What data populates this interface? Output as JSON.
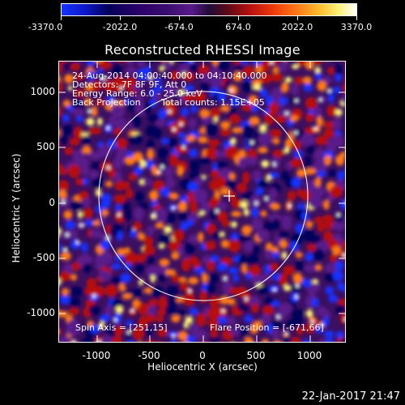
{
  "colorbar": {
    "ticks": [
      "-3370.0",
      "-2022.0",
      "-674.0",
      "674.0",
      "2022.0",
      "3370.0"
    ]
  },
  "title": "Reconstructed RHESSI Image",
  "annotations": {
    "time_range": "24-Aug-2014 04:00:40.000 to 04:10:40.000",
    "detectors": "Detectors: 7F 8F 9F, Att 0",
    "energy_range": "Energy Range: 6.0 - 25.0 keV",
    "method": "Back Projection",
    "total_counts": "Total counts: 1.15E+05",
    "spin_axis": "Spin Axis = [251,15]",
    "flare_position": "Flare Position = [-671,66]"
  },
  "axes": {
    "xlabel": "Heliocentric X (arcsec)",
    "ylabel": "Heliocentric Y (arcsec)",
    "xticks": [
      "-1000",
      "-500",
      "0",
      "500",
      "1000"
    ],
    "yticks": [
      "1000",
      "500",
      "0",
      "-500",
      "-1000"
    ]
  },
  "footer": "22-Jan-2017 21:47",
  "image": {
    "colormap": [
      "#1733ff",
      "#05005a",
      "#5a1a8a",
      "#b81010",
      "#ff7a18",
      "#fff27a",
      "#ffffff"
    ],
    "solar_limb_color": "#ffffff",
    "spin_axis_marker_color": "#ffffff"
  }
}
